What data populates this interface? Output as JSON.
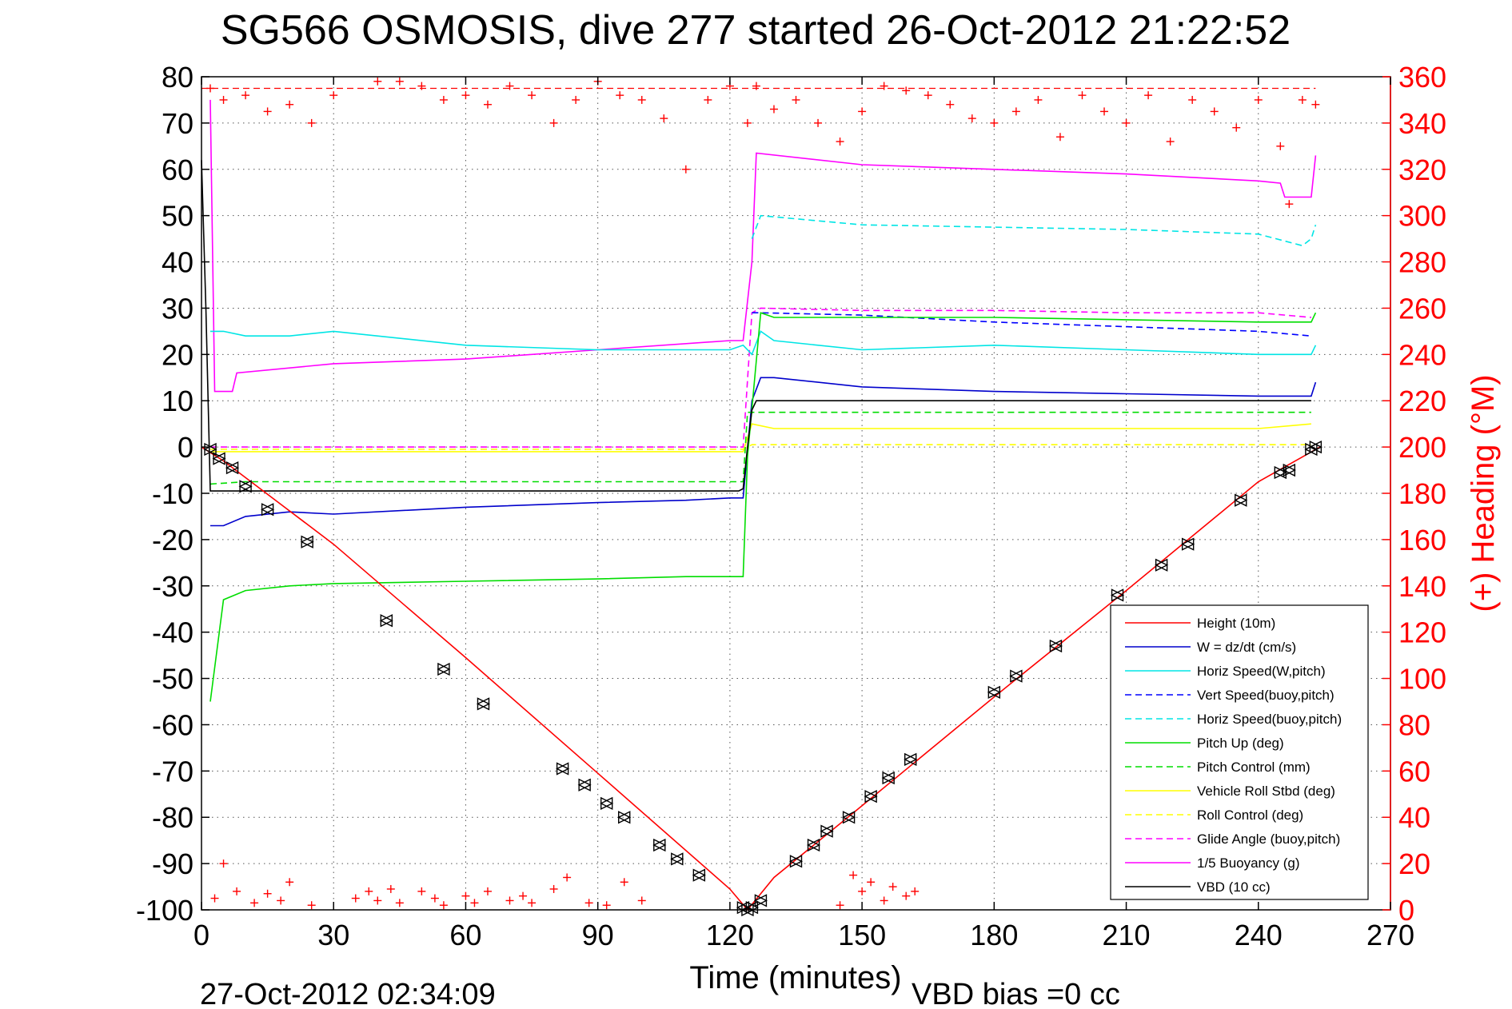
{
  "chart_data": {
    "type": "line",
    "title": "SG566 OSMOSIS, dive 277 started 26-Oct-2012 21:22:52",
    "xlabel": "Time (minutes)",
    "ylabel": "",
    "y2label": "(+) Heading (°M)",
    "xlim": [
      0,
      270
    ],
    "ylim": [
      -100,
      80
    ],
    "y2lim": [
      0,
      360
    ],
    "xticks": [
      0,
      30,
      60,
      90,
      120,
      150,
      180,
      210,
      240,
      270
    ],
    "yticks": [
      80,
      70,
      60,
      50,
      40,
      30,
      20,
      10,
      0,
      -10,
      -20,
      -30,
      -40,
      -50,
      -60,
      -70,
      -80,
      -90,
      -100
    ],
    "y2ticks": [
      360,
      340,
      320,
      300,
      280,
      260,
      240,
      220,
      200,
      180,
      160,
      140,
      120,
      100,
      80,
      60,
      40,
      20,
      0
    ],
    "grid": true,
    "legend_position": "lower-right",
    "footer_left": "27-Oct-2012 02:34:09",
    "footer_right": "VBD bias =0 cc",
    "colors": {
      "height": "#ff0000",
      "w": "#0000cc",
      "horiz_speed_w": "#00e5e5",
      "vert_speed_buoy": "#0000ff",
      "horiz_speed_buoy": "#00e5e5",
      "pitch": "#00dd00",
      "pitch_control": "#00dd00",
      "roll": "#ffff00",
      "roll_control": "#ffff00",
      "glide_angle": "#ff00ff",
      "buoyancy": "#ff00ff",
      "vbd": "#000000",
      "heading": "#ff0000",
      "right_axis": "#ff0000"
    },
    "series": [
      {
        "name": "Height (10m)",
        "key": "height",
        "style": "solid",
        "x": [
          0,
          5,
          30,
          60,
          90,
          120,
          124,
          130,
          150,
          180,
          210,
          240,
          254
        ],
        "y": [
          0,
          -3,
          -21,
          -45.5,
          -70.5,
          -95.5,
          -100,
          -93,
          -77.5,
          -54,
          -31,
          -7.5,
          0
        ]
      },
      {
        "name": "W = dz/dt (cm/s)",
        "key": "w",
        "style": "solid",
        "x": [
          2,
          5,
          10,
          20,
          30,
          60,
          90,
          110,
          120,
          123,
          125,
          127,
          130,
          150,
          180,
          210,
          240,
          252,
          253
        ],
        "y": [
          -17,
          -17,
          -15,
          -14,
          -14.5,
          -13,
          -12,
          -11.5,
          -11,
          -11,
          10,
          15,
          15,
          13,
          12,
          11.5,
          11,
          11,
          14
        ]
      },
      {
        "name": "Horiz Speed(W,pitch)",
        "key": "horiz_speed_w",
        "style": "solid",
        "x": [
          2,
          5,
          10,
          20,
          30,
          60,
          90,
          110,
          120,
          123,
          125,
          127,
          130,
          150,
          180,
          210,
          240,
          252,
          253
        ],
        "y": [
          25,
          25,
          24,
          24,
          25,
          22,
          21,
          21,
          21,
          22,
          20,
          25,
          23,
          21,
          22,
          21,
          20,
          20,
          22
        ]
      },
      {
        "name": "Vert Speed(buoy,pitch)",
        "key": "vert_speed_buoy",
        "style": "dashed",
        "x": [
          125,
          127,
          150,
          180,
          210,
          240,
          252
        ],
        "y": [
          29,
          29,
          28.5,
          27,
          26,
          25,
          24
        ]
      },
      {
        "name": "Horiz Speed(buoy,pitch)",
        "key": "horiz_speed_buoy",
        "style": "dashed",
        "x": [
          125,
          127,
          150,
          180,
          210,
          240,
          250,
          252,
          253
        ],
        "y": [
          45,
          50,
          48,
          47.5,
          47,
          46,
          43.5,
          45,
          48
        ]
      },
      {
        "name": "Pitch Up (deg)",
        "key": "pitch",
        "style": "solid",
        "x": [
          2,
          5,
          10,
          20,
          30,
          60,
          90,
          110,
          120,
          123,
          124,
          127,
          130,
          150,
          180,
          210,
          240,
          252,
          253
        ],
        "y": [
          -55,
          -33,
          -31,
          -30,
          -29.5,
          -29,
          -28.5,
          -28,
          -28,
          -28,
          -2,
          29,
          28,
          28,
          28,
          27.5,
          27,
          27,
          29
        ]
      },
      {
        "name": "Pitch Control (mm)",
        "key": "pitch_control",
        "style": "dashed",
        "x": [
          2,
          10,
          60,
          123,
          124,
          127,
          252
        ],
        "y": [
          -8,
          -7.5,
          -7.5,
          -7.5,
          7.5,
          7.5,
          7.5
        ]
      },
      {
        "name": "Vehicle Roll Stbd (deg)",
        "key": "roll",
        "style": "solid",
        "x": [
          2,
          10,
          30,
          60,
          90,
          120,
          123,
          125,
          130,
          150,
          180,
          210,
          240,
          252
        ],
        "y": [
          -1,
          -1,
          -1,
          -1,
          -1,
          -1,
          -1,
          5,
          4,
          4,
          4,
          4,
          4,
          5
        ]
      },
      {
        "name": "Roll Control (deg)",
        "key": "roll_control",
        "style": "dashed",
        "x": [
          2,
          123,
          125,
          252
        ],
        "y": [
          -0.5,
          -0.5,
          0.5,
          0.5
        ]
      },
      {
        "name": "Glide Angle (buoy,pitch)",
        "key": "glide_angle",
        "style": "dashed",
        "x": [
          2,
          123,
          125,
          127,
          150,
          180,
          210,
          240,
          252
        ],
        "y": [
          0,
          0,
          29,
          30,
          29.5,
          29.5,
          29,
          29,
          28
        ]
      },
      {
        "name": "1/5 Buoyancy (g)",
        "key": "buoyancy",
        "style": "solid",
        "x": [
          2,
          3,
          7,
          8,
          30,
          60,
          90,
          120,
          123,
          125,
          126,
          150,
          180,
          210,
          240,
          245,
          246,
          252,
          253
        ],
        "y": [
          75,
          12,
          12,
          16,
          18,
          19,
          21,
          23,
          23,
          40,
          63.5,
          61,
          60,
          59,
          57.5,
          57,
          54,
          54,
          63
        ]
      },
      {
        "name": "VBD (10 cc)",
        "key": "vbd",
        "style": "solid",
        "x": [
          0,
          1,
          2,
          122,
          123,
          124,
          125,
          126,
          127,
          252
        ],
        "y": [
          62,
          30,
          -9.5,
          -9.5,
          -9,
          0,
          8,
          10,
          10,
          10
        ]
      }
    ],
    "heading": {
      "name": "Heading",
      "key": "heading",
      "axis": "right",
      "marker": "+",
      "x": [
        2,
        5,
        10,
        15,
        20,
        25,
        30,
        40,
        45,
        50,
        55,
        60,
        65,
        70,
        75,
        80,
        85,
        90,
        95,
        100,
        105,
        110,
        115,
        120,
        124,
        126,
        130,
        135,
        140,
        145,
        150,
        155,
        160,
        165,
        170,
        175,
        180,
        185,
        190,
        195,
        200,
        205,
        210,
        215,
        220,
        225,
        230,
        235,
        240,
        245,
        247,
        250,
        253
      ],
      "y": [
        355,
        350,
        352,
        345,
        348,
        340,
        352,
        358,
        358,
        356,
        350,
        352,
        348,
        356,
        352,
        340,
        350,
        358,
        352,
        350,
        342,
        320,
        350,
        356,
        340,
        356,
        346,
        350,
        340,
        332,
        345,
        356,
        354,
        352,
        348,
        342,
        340,
        345,
        350,
        334,
        352,
        345,
        340,
        352,
        332,
        350,
        345,
        338,
        350,
        330,
        305,
        350,
        348
      ]
    },
    "heading_lower": {
      "name": "Heading",
      "key": "heading",
      "axis": "right",
      "marker": "+",
      "x": [
        3,
        5,
        8,
        12,
        15,
        18,
        20,
        25,
        35,
        38,
        40,
        43,
        45,
        50,
        53,
        55,
        60,
        62,
        65,
        70,
        73,
        75,
        80,
        83,
        88,
        92,
        96,
        100,
        145,
        148,
        150,
        152,
        155,
        157,
        160,
        162
      ],
      "y": [
        5,
        20,
        8,
        3,
        7,
        4,
        12,
        2,
        5,
        8,
        4,
        9,
        3,
        8,
        5,
        2,
        6,
        3,
        8,
        4,
        6,
        3,
        9,
        14,
        3,
        2,
        12,
        4,
        2,
        15,
        8,
        12,
        4,
        10,
        6,
        8
      ]
    },
    "markers": {
      "name": "dive markers",
      "key": "height",
      "x": [
        2,
        4,
        7,
        10,
        15,
        24,
        42,
        55,
        64,
        82,
        87,
        92,
        96,
        104,
        108,
        113,
        123,
        124,
        125,
        127,
        135,
        139,
        142,
        147,
        152,
        156,
        161,
        180,
        185,
        194,
        208,
        218,
        224,
        236,
        245,
        247,
        252,
        253
      ],
      "y": [
        -0.5,
        -2.5,
        -4.5,
        -8.5,
        -13.5,
        -20.5,
        -37.5,
        -48,
        -55.5,
        -69.5,
        -73,
        -77,
        -80,
        -86,
        -89,
        -92.5,
        -99.5,
        -100,
        -99.5,
        -98,
        -89.5,
        -86,
        -83,
        -80,
        -75.5,
        -71.5,
        -67.5,
        -53,
        -49.5,
        -43,
        -32,
        -25.5,
        -21,
        -11.5,
        -5.5,
        -5,
        -0.5,
        0
      ]
    }
  }
}
